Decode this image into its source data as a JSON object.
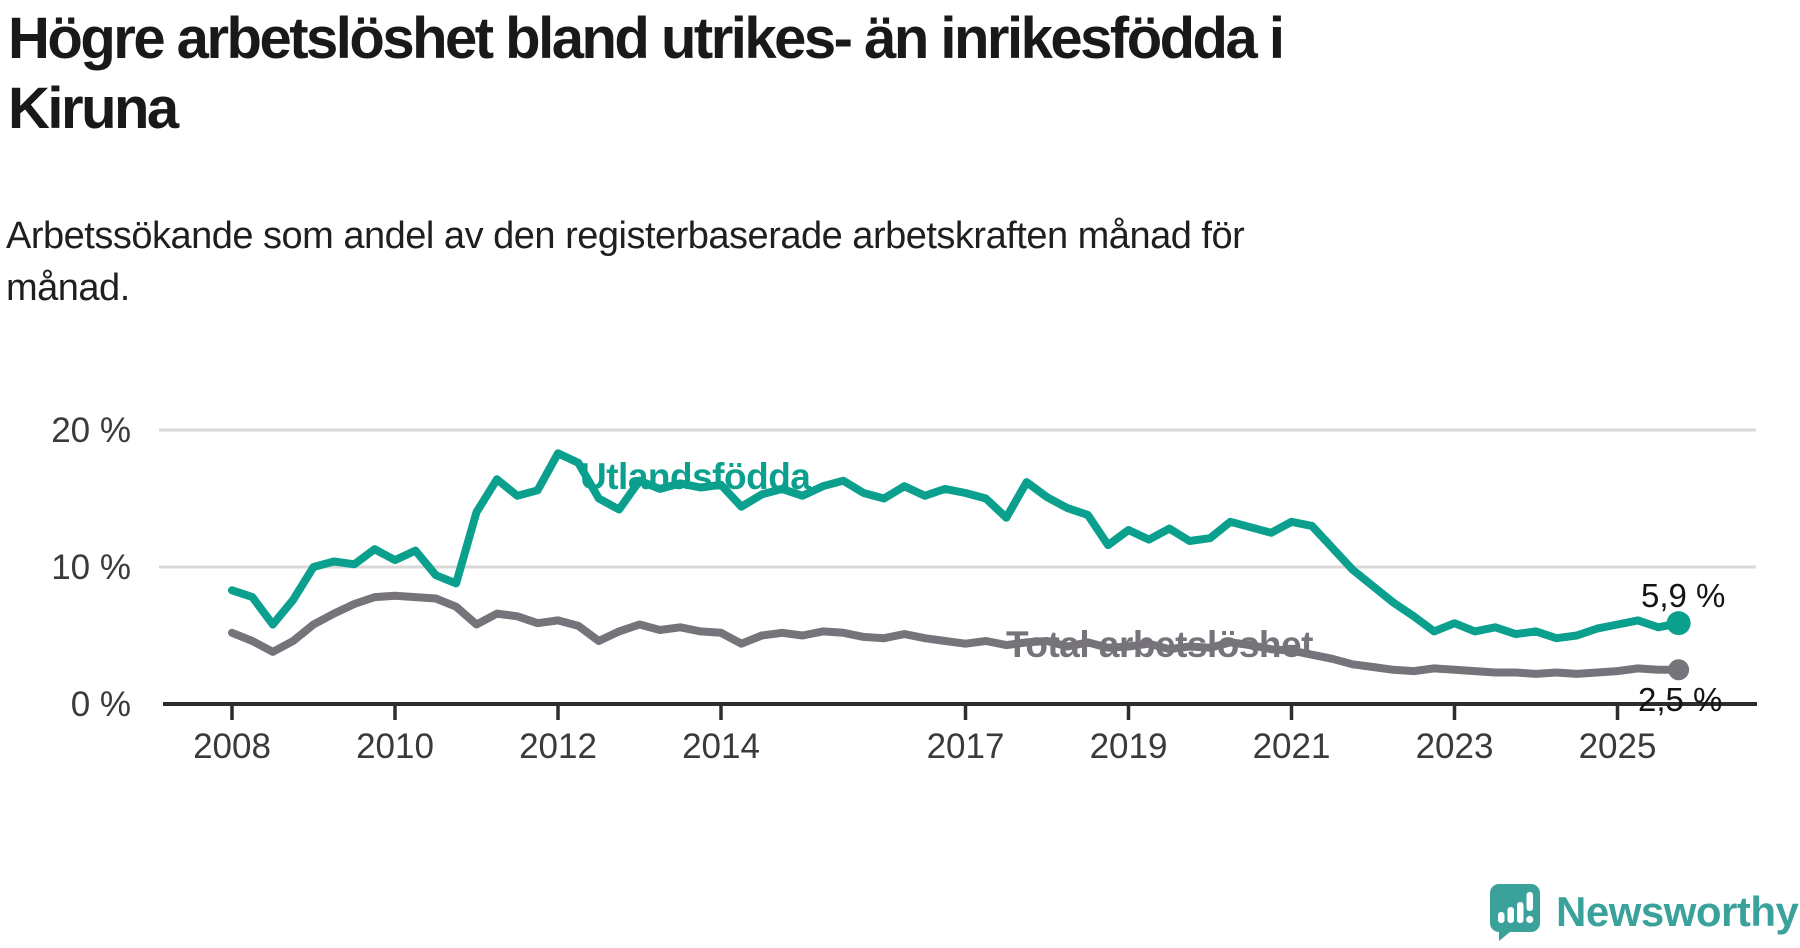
{
  "header": {
    "title": "Högre arbetslöshet bland utrikes- än inrikesfödda i Kiruna",
    "title_lines": [
      "Högre arbetslöshet bland utrikes- än inrikesfödda i",
      "Kiruna"
    ],
    "subtitle": "Arbetssökande som andel av den registerbaserade arbetskraften månad för månad.",
    "subtitle_lines": [
      "Arbetssökande som andel av den registerbaserade arbetskraften månad för",
      "månad."
    ]
  },
  "chart_data": {
    "type": "line",
    "title": "Högre arbetslöshet bland utrikes- än inrikesfödda i Kiruna",
    "xlabel": "",
    "ylabel": "Arbetssökande som andel av den registerbaserade arbetskraften (%)",
    "unit": "%",
    "xlim": [
      2008,
      2025.83
    ],
    "ylim": [
      0,
      21
    ],
    "grid": "horizontal",
    "legend_position": "inline-annotations",
    "y_ticks": [
      {
        "value": 0,
        "label": "0 %"
      },
      {
        "value": 10,
        "label": "10 %"
      },
      {
        "value": 20,
        "label": "20 %"
      }
    ],
    "x_ticks": [
      {
        "year": 2008,
        "label": "2008"
      },
      {
        "year": 2010,
        "label": "2010"
      },
      {
        "year": 2012,
        "label": "2012"
      },
      {
        "year": 2014,
        "label": "2014"
      },
      {
        "year": 2017,
        "label": "2017"
      },
      {
        "year": 2019,
        "label": "2019"
      },
      {
        "year": 2021,
        "label": "2021"
      },
      {
        "year": 2023,
        "label": "2023"
      },
      {
        "year": 2025,
        "label": "2025"
      }
    ],
    "series": [
      {
        "name": "Total arbetslöshet",
        "color": "#76737a",
        "end_label": "2,5 %",
        "end_value": 2.5,
        "points": [
          [
            2008,
            5.2
          ],
          [
            2008.25,
            4.6
          ],
          [
            2008.5,
            3.8
          ],
          [
            2008.75,
            4.6
          ],
          [
            2009,
            5.8
          ],
          [
            2009.25,
            6.6
          ],
          [
            2009.5,
            7.3
          ],
          [
            2009.75,
            7.8
          ],
          [
            2010,
            7.9
          ],
          [
            2010.25,
            7.8
          ],
          [
            2010.5,
            7.7
          ],
          [
            2010.75,
            7.1
          ],
          [
            2011,
            5.8
          ],
          [
            2011.25,
            6.6
          ],
          [
            2011.5,
            6.4
          ],
          [
            2011.75,
            5.9
          ],
          [
            2012,
            6.1
          ],
          [
            2012.25,
            5.7
          ],
          [
            2012.5,
            4.6
          ],
          [
            2012.75,
            5.3
          ],
          [
            2013,
            5.8
          ],
          [
            2013.25,
            5.4
          ],
          [
            2013.5,
            5.6
          ],
          [
            2013.75,
            5.3
          ],
          [
            2014,
            5.2
          ],
          [
            2014.25,
            4.4
          ],
          [
            2014.5,
            5.0
          ],
          [
            2014.75,
            5.2
          ],
          [
            2015,
            5.0
          ],
          [
            2015.25,
            5.3
          ],
          [
            2015.5,
            5.2
          ],
          [
            2015.75,
            4.9
          ],
          [
            2016,
            4.8
          ],
          [
            2016.25,
            5.1
          ],
          [
            2016.5,
            4.8
          ],
          [
            2016.75,
            4.6
          ],
          [
            2017,
            4.4
          ],
          [
            2017.25,
            4.6
          ],
          [
            2017.5,
            4.3
          ],
          [
            2017.75,
            4.5
          ],
          [
            2018,
            4.6
          ],
          [
            2018.25,
            4.2
          ],
          [
            2018.5,
            4.5
          ],
          [
            2018.75,
            4.1
          ],
          [
            2019,
            4.2
          ],
          [
            2019.25,
            4.4
          ],
          [
            2019.5,
            4.0
          ],
          [
            2019.75,
            4.2
          ],
          [
            2020,
            4.1
          ],
          [
            2020.25,
            4.5
          ],
          [
            2020.5,
            4.3
          ],
          [
            2020.75,
            4.0
          ],
          [
            2021,
            3.9
          ],
          [
            2021.25,
            3.6
          ],
          [
            2021.5,
            3.3
          ],
          [
            2021.75,
            2.9
          ],
          [
            2022,
            2.7
          ],
          [
            2022.25,
            2.5
          ],
          [
            2022.5,
            2.4
          ],
          [
            2022.75,
            2.6
          ],
          [
            2023,
            2.5
          ],
          [
            2023.25,
            2.4
          ],
          [
            2023.5,
            2.3
          ],
          [
            2023.75,
            2.3
          ],
          [
            2024,
            2.2
          ],
          [
            2024.25,
            2.3
          ],
          [
            2024.5,
            2.2
          ],
          [
            2024.75,
            2.3
          ],
          [
            2025,
            2.4
          ],
          [
            2025.25,
            2.6
          ],
          [
            2025.5,
            2.5
          ],
          [
            2025.75,
            2.5
          ]
        ]
      },
      {
        "name": "Utlandsfödda",
        "color": "#0ba08e",
        "end_label": "5,9 %",
        "end_value": 5.9,
        "points": [
          [
            2008,
            8.3
          ],
          [
            2008.25,
            7.8
          ],
          [
            2008.5,
            5.8
          ],
          [
            2008.75,
            7.6
          ],
          [
            2009,
            10.0
          ],
          [
            2009.25,
            10.4
          ],
          [
            2009.5,
            10.2
          ],
          [
            2009.75,
            11.3
          ],
          [
            2010,
            10.5
          ],
          [
            2010.25,
            11.2
          ],
          [
            2010.5,
            9.4
          ],
          [
            2010.75,
            8.8
          ],
          [
            2011,
            14.0
          ],
          [
            2011.25,
            16.4
          ],
          [
            2011.5,
            15.2
          ],
          [
            2011.75,
            15.6
          ],
          [
            2012,
            18.3
          ],
          [
            2012.25,
            17.6
          ],
          [
            2012.5,
            15.0
          ],
          [
            2012.75,
            14.2
          ],
          [
            2013,
            16.3
          ],
          [
            2013.25,
            15.7
          ],
          [
            2013.5,
            16.1
          ],
          [
            2013.75,
            15.8
          ],
          [
            2014,
            16.0
          ],
          [
            2014.25,
            14.4
          ],
          [
            2014.5,
            15.3
          ],
          [
            2014.75,
            15.7
          ],
          [
            2015,
            15.2
          ],
          [
            2015.25,
            15.9
          ],
          [
            2015.5,
            16.3
          ],
          [
            2015.75,
            15.4
          ],
          [
            2016,
            15.0
          ],
          [
            2016.25,
            15.9
          ],
          [
            2016.5,
            15.2
          ],
          [
            2016.75,
            15.7
          ],
          [
            2017,
            15.4
          ],
          [
            2017.25,
            15.0
          ],
          [
            2017.5,
            13.6
          ],
          [
            2017.75,
            16.2
          ],
          [
            2018,
            15.1
          ],
          [
            2018.25,
            14.3
          ],
          [
            2018.5,
            13.8
          ],
          [
            2018.75,
            11.6
          ],
          [
            2019,
            12.7
          ],
          [
            2019.25,
            12.0
          ],
          [
            2019.5,
            12.8
          ],
          [
            2019.75,
            11.9
          ],
          [
            2020,
            12.1
          ],
          [
            2020.25,
            13.3
          ],
          [
            2020.5,
            12.9
          ],
          [
            2020.75,
            12.5
          ],
          [
            2021,
            13.3
          ],
          [
            2021.25,
            13.0
          ],
          [
            2021.5,
            11.4
          ],
          [
            2021.75,
            9.8
          ],
          [
            2022,
            8.6
          ],
          [
            2022.25,
            7.4
          ],
          [
            2022.5,
            6.4
          ],
          [
            2022.75,
            5.3
          ],
          [
            2023,
            5.9
          ],
          [
            2023.25,
            5.3
          ],
          [
            2023.5,
            5.6
          ],
          [
            2023.75,
            5.1
          ],
          [
            2024,
            5.3
          ],
          [
            2024.25,
            4.8
          ],
          [
            2024.5,
            5.0
          ],
          [
            2024.75,
            5.5
          ],
          [
            2025,
            5.8
          ],
          [
            2025.25,
            6.1
          ],
          [
            2025.5,
            5.6
          ],
          [
            2025.75,
            5.9
          ]
        ]
      }
    ]
  },
  "branding": {
    "name": "Newsworthy",
    "color": "#3aa29b"
  }
}
